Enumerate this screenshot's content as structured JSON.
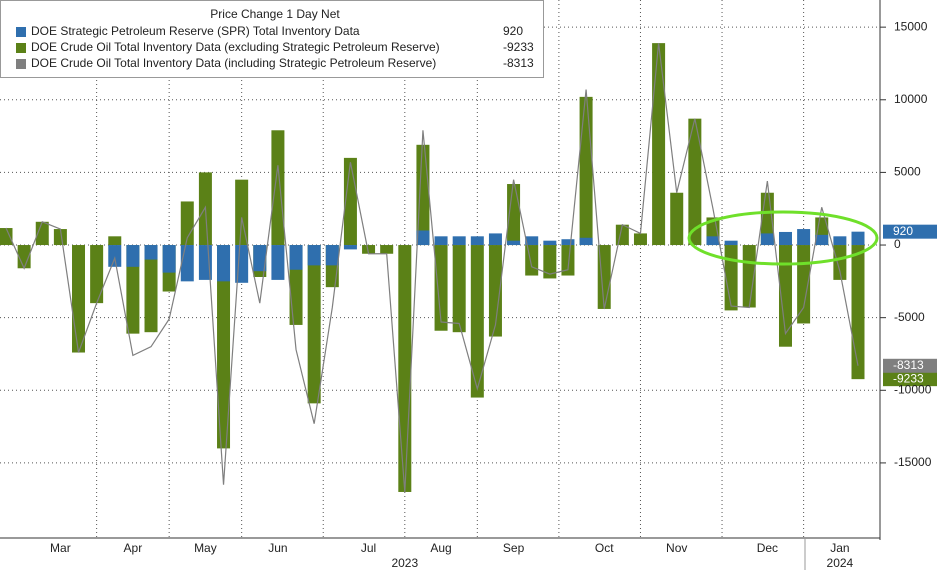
{
  "chart_data": {
    "type": "bar",
    "title": "Price Change 1 Day Net",
    "categories": [
      null,
      null,
      null,
      "Mar",
      null,
      null,
      null,
      "Apr",
      null,
      null,
      null,
      "May",
      null,
      null,
      null,
      "Jun",
      null,
      null,
      null,
      null,
      "Jul",
      null,
      null,
      null,
      "Aug",
      null,
      null,
      null,
      "Sep",
      null,
      null,
      null,
      null,
      "Oct",
      null,
      null,
      null,
      "Nov",
      null,
      null,
      null,
      null,
      "Dec",
      null,
      null,
      null,
      "Jan",
      null
    ],
    "categories2": [
      null,
      null,
      null,
      null,
      null,
      null,
      null,
      null,
      null,
      null,
      null,
      null,
      null,
      null,
      null,
      null,
      null,
      null,
      null,
      null,
      null,
      null,
      "2023",
      null,
      null,
      null,
      null,
      null,
      null,
      null,
      null,
      null,
      null,
      null,
      null,
      null,
      null,
      null,
      null,
      null,
      null,
      null,
      null,
      null,
      null,
      null,
      "2024",
      null
    ],
    "series": [
      {
        "name": "DOE Strategic Petroleum Reserve (SPR) Total Inventory Data",
        "color": "#2f6fae",
        "kind": "bar",
        "values": [
          0,
          0,
          0,
          0,
          0,
          0,
          -1500,
          -1500,
          -1000,
          -1900,
          -2500,
          -2400,
          -2500,
          -2600,
          -1800,
          -2400,
          -1700,
          -1400,
          -1400,
          -300,
          0,
          0,
          0,
          1000,
          600,
          600,
          600,
          800,
          300,
          600,
          300,
          400,
          500,
          0,
          0,
          0,
          0,
          0,
          0,
          600,
          300,
          0,
          800,
          900,
          1100,
          700,
          600,
          920
        ]
      },
      {
        "name": "DOE Crude Oil Total Inventory Data (excluding Strategic Petroleum Reserve)",
        "color": "#5b8117",
        "kind": "bar",
        "values": [
          1170,
          -1600,
          1600,
          1100,
          -7400,
          -4000,
          600,
          -6100,
          -6000,
          -3200,
          3000,
          5000,
          -14000,
          4500,
          -2200,
          7900,
          -5500,
          -10900,
          -2900,
          6000,
          -600,
          -600,
          -17000,
          6900,
          -5900,
          -6000,
          -10500,
          -6300,
          4200,
          -2100,
          -2300,
          -2100,
          10200,
          -4400,
          1400,
          800,
          13900,
          3600,
          8700,
          1900,
          -4500,
          -4300,
          3600,
          -7000,
          -5400,
          1900,
          -2400,
          -9233
        ]
      },
      {
        "name": "DOE Crude Oil Total Inventory Data (including Strategic Petroleum Reserve)",
        "color": "#7f7f7f",
        "kind": "line",
        "values": [
          1170,
          -1600,
          1600,
          1100,
          -7400,
          -4000,
          -900,
          -7600,
          -7000,
          -5100,
          500,
          2600,
          -16500,
          1900,
          -4000,
          5500,
          -7200,
          -12300,
          -4300,
          5700,
          -600,
          -600,
          -17000,
          7900,
          -5300,
          -5400,
          -9900,
          -5500,
          4500,
          -1500,
          -2000,
          -1700,
          10700,
          -4400,
          1400,
          800,
          13900,
          3600,
          8700,
          2500,
          -4200,
          -4300,
          4400,
          -6100,
          -4300,
          2600,
          -1800,
          -8313
        ]
      }
    ],
    "ylim": [
      -20100,
      16800
    ],
    "yticks": [
      -15000,
      -10000,
      -5000,
      0,
      5000,
      10000,
      15000
    ],
    "grid": true
  }
}
